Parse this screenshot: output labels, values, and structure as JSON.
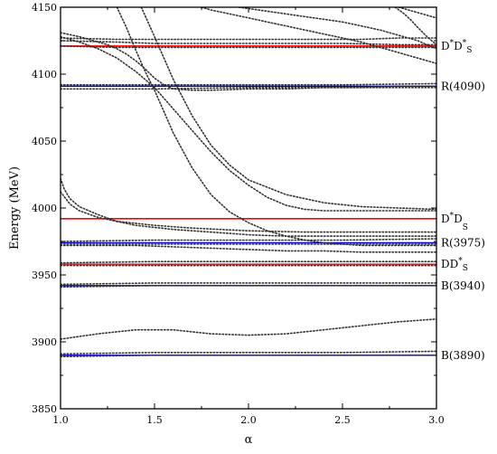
{
  "chart_data": {
    "type": "line",
    "title": "",
    "xlabel": "α",
    "ylabel": "Energy (MeV)",
    "xlim": [
      1.0,
      3.0
    ],
    "ylim": [
      3850,
      4150
    ],
    "x_ticks": [
      1.0,
      1.5,
      2.0,
      2.5,
      3.0
    ],
    "x_tick_labels": [
      "1.0",
      "1.5",
      "2.0",
      "2.5",
      "3.0"
    ],
    "y_ticks": [
      3850,
      3900,
      3950,
      4000,
      4050,
      4100,
      4150
    ],
    "y_tick_labels": [
      "3850",
      "3900",
      "3950",
      "4000",
      "4050",
      "4100",
      "4150"
    ],
    "grid": false,
    "thresholds": [
      {
        "label": "D*D*s",
        "y": 4121,
        "color": "#ff0000",
        "label_parts": [
          {
            "text": "D",
            "style": "normal"
          },
          {
            "text": "*",
            "style": "sup"
          },
          {
            "text": "D",
            "style": "normal"
          },
          {
            "text": "*",
            "style": "sup"
          },
          {
            "text": "S",
            "style": "sub"
          }
        ]
      },
      {
        "label": "D*Ds",
        "y": 3992,
        "color": "#ff0000",
        "label_parts": [
          {
            "text": "D",
            "style": "normal"
          },
          {
            "text": "*",
            "style": "sup"
          },
          {
            "text": "D",
            "style": "normal"
          },
          {
            "text": "S",
            "style": "sub"
          }
        ]
      },
      {
        "label": "DD*s",
        "y": 3958,
        "color": "#cc3333",
        "label_parts": [
          {
            "text": "DD",
            "style": "normal"
          },
          {
            "text": "*",
            "style": "sup"
          },
          {
            "text": "S",
            "style": "sub"
          }
        ]
      }
    ],
    "resonances": [
      {
        "label": "R(4090)",
        "y": 4091,
        "color": "#0000cc"
      },
      {
        "label": "R(3975)",
        "y": 3974,
        "color": "#0000cc"
      },
      {
        "label": "B(3940)",
        "y": 3942,
        "color": "#0000cc"
      },
      {
        "label": "B(3890)",
        "y": 3890,
        "color": "#0000cc"
      }
    ],
    "series": [
      {
        "x": [
          1.0,
          1.5,
          2.0,
          2.5,
          3.0
        ],
        "y": [
          3889,
          3890,
          3890,
          3890,
          3890
        ]
      },
      {
        "x": [
          1.0,
          1.5,
          2.0,
          2.5,
          3.0
        ],
        "y": [
          3891,
          3892,
          3892,
          3892,
          3893
        ]
      },
      {
        "x": [
          1.0,
          1.2,
          1.4,
          1.6,
          1.8,
          2.0,
          2.2,
          2.4,
          2.6,
          2.8,
          3.0
        ],
        "y": [
          3902,
          3906,
          3909,
          3909,
          3906,
          3905,
          3906,
          3909,
          3912,
          3915,
          3917
        ]
      },
      {
        "x": [
          1.0,
          1.5,
          2.0,
          2.5,
          3.0
        ],
        "y": [
          3941,
          3942,
          3942,
          3942,
          3942
        ]
      },
      {
        "x": [
          1.0,
          1.5,
          2.0,
          2.5,
          3.0
        ],
        "y": [
          3943,
          3944,
          3944,
          3944,
          3944
        ]
      },
      {
        "x": [
          1.0,
          1.5,
          2.0,
          2.5,
          3.0
        ],
        "y": [
          3957,
          3957,
          3957,
          3957,
          3957
        ]
      },
      {
        "x": [
          1.0,
          1.5,
          2.0,
          2.5,
          3.0
        ],
        "y": [
          3959,
          3960,
          3960,
          3960,
          3960
        ]
      },
      {
        "x": [
          1.0,
          1.5,
          2.0,
          2.5,
          3.0
        ],
        "y": [
          3973,
          3973,
          3973,
          3973,
          3973
        ]
      },
      {
        "x": [
          1.0,
          1.5,
          2.0,
          2.5,
          3.0
        ],
        "y": [
          3975,
          3976,
          3976,
          3976,
          3977
        ]
      },
      {
        "x": [
          1.0,
          1.02,
          1.05,
          1.1,
          1.2,
          1.3,
          1.4,
          1.6,
          1.8,
          2.0,
          2.2,
          2.4,
          2.6,
          2.8,
          3.0
        ],
        "y": [
          4022,
          4014,
          4007,
          4001,
          3995,
          3990,
          3987,
          3984,
          3982,
          3980,
          3979,
          3979,
          3979,
          3979,
          3979
        ]
      },
      {
        "x": [
          1.0,
          1.05,
          1.1,
          1.2,
          1.3,
          1.5,
          1.7,
          2.0,
          2.3,
          2.6,
          3.0
        ],
        "y": [
          4012,
          4003,
          3998,
          3993,
          3990,
          3987,
          3985,
          3983,
          3982,
          3982,
          3982
        ]
      },
      {
        "x": [
          1.0,
          1.1,
          1.15,
          1.2,
          1.25,
          1.3,
          1.35,
          1.4,
          1.45,
          1.5,
          1.55,
          1.6,
          1.7,
          1.8,
          2.0,
          2.2,
          2.4,
          2.6,
          2.8,
          3.0
        ],
        "y": [
          4131,
          4128,
          4126,
          4124,
          4122,
          4119,
          4115,
          4110,
          4104,
          4097,
          4092,
          4089,
          4088,
          4088,
          4089,
          4089,
          4090,
          4090,
          4091,
          4091
        ]
      },
      {
        "x": [
          1.0,
          1.1,
          1.2,
          1.3,
          1.4,
          1.5,
          1.6,
          1.7,
          1.8,
          1.9,
          2.0,
          2.1,
          2.2,
          2.3,
          2.4,
          2.5,
          2.6,
          2.8,
          3.0
        ],
        "y": [
          4128,
          4124,
          4119,
          4112,
          4102,
          4090,
          4074,
          4058,
          4042,
          4028,
          4017,
          4008,
          4002,
          3999,
          3998,
          3998,
          3998,
          3998,
          3998
        ]
      },
      {
        "x": [
          1.3,
          1.35,
          1.4,
          1.45,
          1.5,
          1.55,
          1.6,
          1.7,
          1.8,
          1.9,
          2.0,
          2.1,
          2.2,
          2.3,
          2.4,
          2.5,
          2.6,
          2.8,
          3.0
        ],
        "y": [
          4150,
          4135,
          4118,
          4102,
          4088,
          4072,
          4056,
          4030,
          4010,
          3997,
          3989,
          3983,
          3979,
          3976,
          3974,
          3973,
          3972,
          3972,
          3972
        ]
      },
      {
        "x": [
          1.43,
          1.5,
          1.55,
          1.6,
          1.7,
          1.8,
          1.9,
          2.0,
          2.2,
          2.4,
          2.6,
          2.8,
          3.0
        ],
        "y": [
          4150,
          4128,
          4112,
          4096,
          4069,
          4047,
          4032,
          4021,
          4010,
          4004,
          4001,
          4000,
          3999
        ]
      },
      {
        "x": [
          1.0,
          1.3,
          1.5,
          1.8,
          2.0,
          2.5,
          2.8,
          3.0
        ],
        "y": [
          4125,
          4124,
          4123,
          4123,
          4123,
          4123,
          4122,
          4122
        ]
      },
      {
        "x": [
          1.0,
          1.3,
          1.5,
          1.8,
          2.0,
          2.5,
          2.8,
          3.0
        ],
        "y": [
          4121,
          4120,
          4120,
          4120,
          4120,
          4120,
          4120,
          4120
        ]
      },
      {
        "x": [
          1.0,
          1.3,
          1.5,
          1.8,
          2.0,
          2.3,
          2.6,
          2.8,
          3.0
        ],
        "y": [
          4127,
          4126,
          4126,
          4126,
          4126,
          4126,
          4126,
          4127,
          4127
        ]
      },
      {
        "x": [
          1.75,
          1.8,
          1.9,
          2.0,
          2.1,
          2.2,
          2.3,
          2.4,
          2.5,
          2.6,
          2.7,
          2.8,
          2.9,
          3.0
        ],
        "y": [
          4150,
          4148,
          4145,
          4142,
          4139,
          4136,
          4133,
          4130,
          4127,
          4124,
          4120,
          4116,
          4112,
          4108
        ]
      },
      {
        "x": [
          1.95,
          2.0,
          2.1,
          2.2,
          2.3,
          2.4,
          2.5,
          2.6,
          2.7,
          2.8,
          2.9,
          3.0
        ],
        "y": [
          4150,
          4149,
          4147,
          4145,
          4143,
          4141,
          4139,
          4136,
          4133,
          4129,
          4125,
          4119
        ]
      },
      {
        "x": [
          2.8,
          2.85,
          2.9,
          2.95,
          3.0
        ],
        "y": [
          4150,
          4148,
          4146,
          4144,
          4142
        ]
      },
      {
        "x": [
          2.78,
          2.82,
          2.86,
          2.9,
          2.95,
          3.0
        ],
        "y": [
          4150,
          4146,
          4141,
          4135,
          4128,
          4122
        ]
      },
      {
        "x": [
          1.0,
          1.5,
          2.0,
          2.5,
          3.0
        ],
        "y": [
          4089,
          4089,
          4090,
          4090,
          4090
        ]
      },
      {
        "x": [
          1.0,
          1.5,
          2.0,
          2.5,
          3.0
        ],
        "y": [
          4092,
          4092,
          4092,
          4092,
          4093
        ]
      },
      {
        "x": [
          1.0,
          1.1,
          1.2,
          1.4,
          1.6,
          1.8,
          2.0,
          2.2,
          2.4,
          2.6,
          2.8,
          3.0
        ],
        "y": [
          3972,
          3972,
          3972,
          3972,
          3971,
          3970,
          3969,
          3968,
          3968,
          3967,
          3967,
          3967
        ]
      }
    ]
  }
}
